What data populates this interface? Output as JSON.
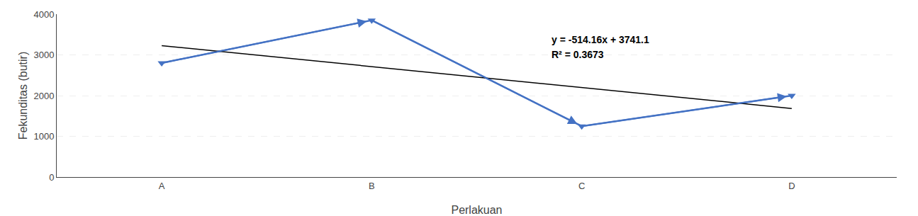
{
  "chart_data": {
    "type": "line",
    "xlabel": "Perlakuan",
    "ylabel": "Fekunditas (butir)",
    "categories": [
      "A",
      "B",
      "C",
      "D"
    ],
    "series": [
      {
        "type": "line",
        "color": "#4472C4",
        "marker": "triangle-down",
        "values": [
          2800,
          3850,
          1250,
          2000
        ]
      },
      {
        "type": "line",
        "color": "#000000",
        "values": [
          3226.94,
          2712.78,
          2198.62,
          1684.46
        ]
      }
    ],
    "annotations": [
      "y = -514.16x + 3741.1",
      "R² = 0.3673"
    ],
    "ylim": [
      0,
      4000
    ],
    "yticks": [
      0,
      1000,
      2000,
      3000,
      4000
    ],
    "grid": true
  }
}
